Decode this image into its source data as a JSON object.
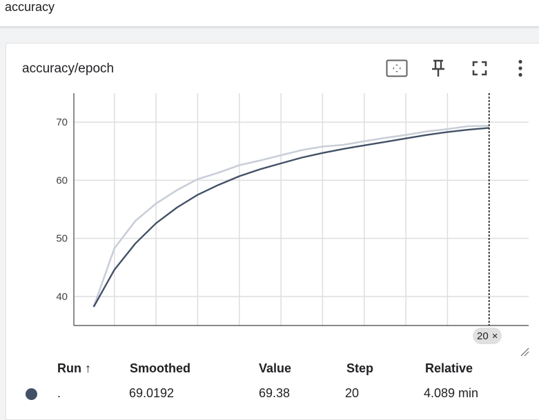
{
  "section": {
    "title": "accuracy"
  },
  "card": {
    "title": "accuracy/epoch",
    "icons": [
      "fit-domain-icon",
      "pin-icon",
      "fullscreen-icon",
      "more-vert-icon"
    ]
  },
  "chart_data": {
    "type": "line",
    "title": "",
    "xlabel": "",
    "ylabel": "",
    "xlim": [
      0.05,
      21.9
    ],
    "ylim": [
      35,
      75
    ],
    "x_ticks": [
      2,
      4,
      6,
      8,
      10,
      12,
      14,
      16,
      18
    ],
    "y_ticks": [
      40,
      50,
      60,
      70
    ],
    "grid": true,
    "series": [
      {
        "role": "raw",
        "color": "#c9ced8",
        "x": [
          1,
          2,
          3,
          4,
          5,
          6,
          7,
          8,
          9,
          10,
          11,
          12,
          13,
          14,
          15,
          16,
          17,
          18,
          19,
          20
        ],
        "y": [
          38.2,
          48.3,
          53.0,
          56.0,
          58.3,
          60.2,
          61.3,
          62.6,
          63.4,
          64.3,
          65.2,
          65.8,
          66.1,
          66.7,
          67.3,
          67.8,
          68.4,
          68.8,
          69.3,
          69.38
        ]
      },
      {
        "role": "smoothed",
        "color": "#425066",
        "x": [
          1,
          2,
          3,
          4,
          5,
          6,
          7,
          8,
          9,
          10,
          11,
          12,
          13,
          14,
          15,
          16,
          17,
          18,
          19,
          20
        ],
        "y": [
          38.2,
          44.6,
          49.1,
          52.6,
          55.3,
          57.5,
          59.2,
          60.7,
          61.9,
          62.9,
          63.9,
          64.7,
          65.4,
          66.0,
          66.6,
          67.2,
          67.8,
          68.3,
          68.7,
          69.0192
        ]
      }
    ],
    "cursor_step": 20
  },
  "hover": {
    "step_label": "20",
    "close": "×"
  },
  "table": {
    "headers": {
      "run": "Run ↑",
      "smoothed": "Smoothed",
      "value": "Value",
      "step": "Step",
      "relative": "Relative"
    },
    "row": {
      "run": ".",
      "smoothed": "69.0192",
      "value": "69.38",
      "step": "20",
      "relative": "4.089 min",
      "color": "#425066"
    }
  }
}
